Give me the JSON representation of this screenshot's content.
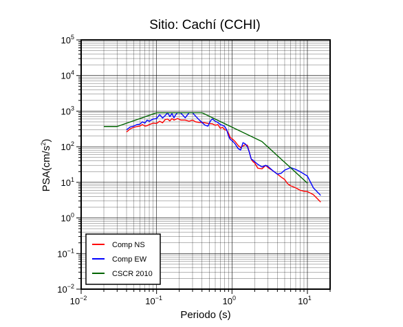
{
  "chart_data": {
    "type": "line",
    "title": "Sitio: Cachí (CCHI)",
    "xlabel": "Periodo (s)",
    "ylabel": "PSA(cm/s²)",
    "ylabel_parts": {
      "main": "PSA(cm/s",
      "sup": "2",
      "end": ")"
    },
    "xscale": "log",
    "yscale": "log",
    "xlim": [
      0.01,
      20
    ],
    "ylim": [
      0.01,
      100000
    ],
    "x_ticks": [
      {
        "value": 0.01,
        "base": "10",
        "exp": "−2"
      },
      {
        "value": 0.1,
        "base": "10",
        "exp": "−1"
      },
      {
        "value": 1,
        "base": "10",
        "exp": "0"
      },
      {
        "value": 10,
        "base": "10",
        "exp": "1"
      }
    ],
    "y_ticks": [
      {
        "value": 0.01,
        "base": "10",
        "exp": "−2"
      },
      {
        "value": 0.1,
        "base": "10",
        "exp": "−1"
      },
      {
        "value": 1,
        "base": "10",
        "exp": "0"
      },
      {
        "value": 10,
        "base": "10",
        "exp": "1"
      },
      {
        "value": 100,
        "base": "10",
        "exp": "2"
      },
      {
        "value": 1000,
        "base": "10",
        "exp": "3"
      },
      {
        "value": 10000,
        "base": "10",
        "exp": "4"
      },
      {
        "value": 100000,
        "base": "10",
        "exp": "5"
      }
    ],
    "grid": true,
    "legend_position": "bottom-left",
    "series": [
      {
        "name": "Comp NS",
        "color": "#ff0000",
        "points": [
          [
            0.04,
            260
          ],
          [
            0.045,
            320
          ],
          [
            0.05,
            350
          ],
          [
            0.055,
            370
          ],
          [
            0.06,
            380
          ],
          [
            0.065,
            420
          ],
          [
            0.07,
            380
          ],
          [
            0.075,
            390
          ],
          [
            0.08,
            420
          ],
          [
            0.09,
            460
          ],
          [
            0.1,
            450
          ],
          [
            0.11,
            520
          ],
          [
            0.12,
            470
          ],
          [
            0.13,
            580
          ],
          [
            0.14,
            600
          ],
          [
            0.15,
            530
          ],
          [
            0.16,
            620
          ],
          [
            0.17,
            560
          ],
          [
            0.19,
            620
          ],
          [
            0.21,
            560
          ],
          [
            0.24,
            560
          ],
          [
            0.27,
            520
          ],
          [
            0.3,
            560
          ],
          [
            0.33,
            500
          ],
          [
            0.37,
            480
          ],
          [
            0.42,
            480
          ],
          [
            0.48,
            450
          ],
          [
            0.55,
            440
          ],
          [
            0.6,
            400
          ],
          [
            0.65,
            420
          ],
          [
            0.7,
            330
          ],
          [
            0.75,
            350
          ],
          [
            0.8,
            300
          ],
          [
            0.85,
            290
          ],
          [
            0.9,
            240
          ],
          [
            0.95,
            180
          ],
          [
            1.0,
            170
          ],
          [
            1.1,
            140
          ],
          [
            1.2,
            110
          ],
          [
            1.3,
            95
          ],
          [
            1.4,
            105
          ],
          [
            1.5,
            115
          ],
          [
            1.6,
            110
          ],
          [
            1.7,
            70
          ],
          [
            1.8,
            45
          ],
          [
            1.9,
            38
          ],
          [
            2.0,
            35
          ],
          [
            2.2,
            25
          ],
          [
            2.5,
            24
          ],
          [
            2.8,
            30
          ],
          [
            3.0,
            26
          ],
          [
            3.5,
            21
          ],
          [
            4.0,
            17
          ],
          [
            4.5,
            14
          ],
          [
            5.0,
            12
          ],
          [
            5.5,
            9
          ],
          [
            6.0,
            8
          ],
          [
            7.0,
            7
          ],
          [
            8.0,
            6
          ],
          [
            9.0,
            5.6
          ],
          [
            10,
            5.5
          ],
          [
            12,
            4.5
          ],
          [
            15,
            2.8
          ]
        ]
      },
      {
        "name": "Comp EW",
        "color": "#0000ff",
        "points": [
          [
            0.04,
            300
          ],
          [
            0.045,
            360
          ],
          [
            0.05,
            380
          ],
          [
            0.055,
            420
          ],
          [
            0.06,
            430
          ],
          [
            0.065,
            500
          ],
          [
            0.07,
            460
          ],
          [
            0.075,
            560
          ],
          [
            0.08,
            520
          ],
          [
            0.09,
            600
          ],
          [
            0.1,
            620
          ],
          [
            0.11,
            800
          ],
          [
            0.12,
            640
          ],
          [
            0.13,
            750
          ],
          [
            0.14,
            900
          ],
          [
            0.15,
            700
          ],
          [
            0.16,
            850
          ],
          [
            0.17,
            650
          ],
          [
            0.18,
            800
          ],
          [
            0.19,
            900
          ],
          [
            0.21,
            880
          ],
          [
            0.24,
            650
          ],
          [
            0.27,
            900
          ],
          [
            0.3,
            900
          ],
          [
            0.33,
            720
          ],
          [
            0.37,
            560
          ],
          [
            0.4,
            480
          ],
          [
            0.44,
            400
          ],
          [
            0.48,
            380
          ],
          [
            0.52,
            540
          ],
          [
            0.55,
            600
          ],
          [
            0.6,
            520
          ],
          [
            0.65,
            480
          ],
          [
            0.7,
            420
          ],
          [
            0.75,
            400
          ],
          [
            0.8,
            370
          ],
          [
            0.85,
            300
          ],
          [
            0.9,
            200
          ],
          [
            0.95,
            160
          ],
          [
            1.0,
            150
          ],
          [
            1.1,
            120
          ],
          [
            1.2,
            90
          ],
          [
            1.3,
            80
          ],
          [
            1.4,
            130
          ],
          [
            1.5,
            120
          ],
          [
            1.6,
            100
          ],
          [
            1.7,
            70
          ],
          [
            1.8,
            45
          ],
          [
            1.9,
            42
          ],
          [
            2.0,
            38
          ],
          [
            2.2,
            32
          ],
          [
            2.5,
            27
          ],
          [
            2.8,
            30
          ],
          [
            3.0,
            28
          ],
          [
            3.5,
            21
          ],
          [
            4.0,
            17
          ],
          [
            4.5,
            18
          ],
          [
            5.0,
            22
          ],
          [
            6.0,
            26
          ],
          [
            7.0,
            23
          ],
          [
            8.0,
            20
          ],
          [
            10,
            15
          ],
          [
            12,
            7
          ],
          [
            15,
            4.3
          ]
        ]
      },
      {
        "name": "CSCR 2010",
        "color": "#006400",
        "points": [
          [
            0.02,
            370
          ],
          [
            0.03,
            370
          ],
          [
            0.1,
            900
          ],
          [
            0.4,
            900
          ],
          [
            2.5,
            140
          ],
          [
            10,
            9.5
          ]
        ]
      }
    ]
  }
}
